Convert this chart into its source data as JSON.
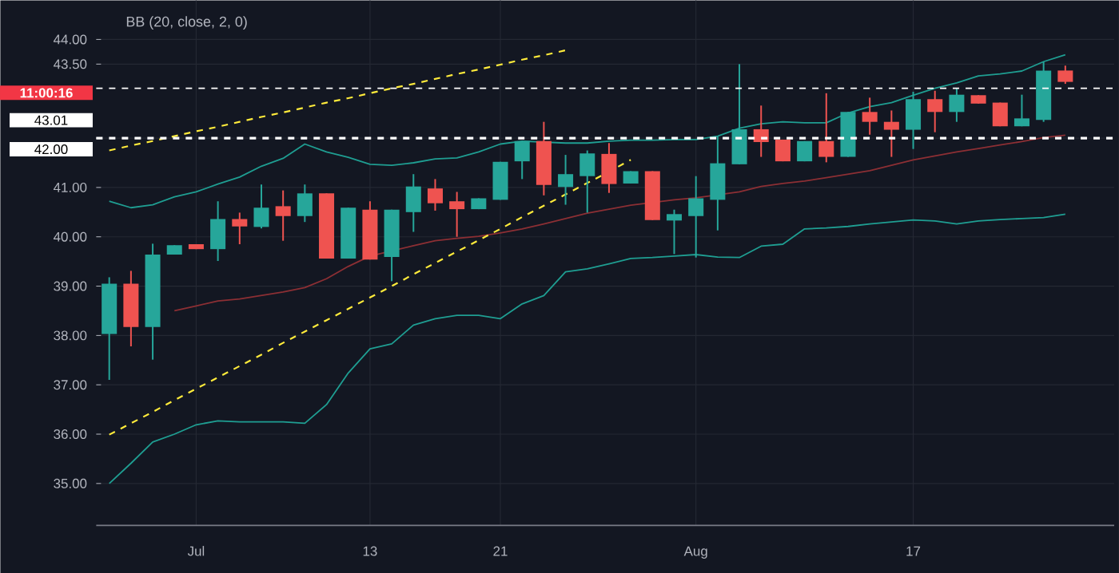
{
  "chart_data": {
    "type": "candlestick",
    "title": "BB (20, close, 2, 0)",
    "categories": [
      null,
      null,
      null,
      null,
      "Jul",
      null,
      null,
      null,
      null,
      null,
      null,
      null,
      "13",
      null,
      null,
      null,
      null,
      null,
      "21",
      null,
      null,
      null,
      null,
      null,
      null,
      null,
      null,
      "Aug",
      null,
      null,
      null,
      null,
      null,
      null,
      null,
      null,
      null,
      "17",
      null,
      null,
      null,
      null,
      null,
      null,
      null
    ],
    "ohlc": [
      [
        38.03,
        39.18,
        37.1,
        39.05
      ],
      [
        39.05,
        39.31,
        37.78,
        38.17
      ],
      [
        38.17,
        39.86,
        37.51,
        39.64
      ],
      [
        39.64,
        39.83,
        39.64,
        39.83
      ],
      [
        39.85,
        39.85,
        39.75,
        39.75
      ],
      [
        39.75,
        40.72,
        39.51,
        40.36
      ],
      [
        40.36,
        40.49,
        39.85,
        40.21
      ],
      [
        40.2,
        41.06,
        40.17,
        40.59
      ],
      [
        40.62,
        40.94,
        39.92,
        40.42
      ],
      [
        40.42,
        41.06,
        40.3,
        40.88
      ],
      [
        40.88,
        40.88,
        39.56,
        39.56
      ],
      [
        39.56,
        40.59,
        39.56,
        40.59
      ],
      [
        40.55,
        40.72,
        39.54,
        39.54
      ],
      [
        39.59,
        40.55,
        39.1,
        40.55
      ],
      [
        40.5,
        41.27,
        40.1,
        41.02
      ],
      [
        40.98,
        41.17,
        40.53,
        40.68
      ],
      [
        40.72,
        40.91,
        40.0,
        40.56
      ],
      [
        40.56,
        40.78,
        40.56,
        40.78
      ],
      [
        40.75,
        41.52,
        40.75,
        41.52
      ],
      [
        41.53,
        41.94,
        41.17,
        41.94
      ],
      [
        41.94,
        42.33,
        40.84,
        41.05
      ],
      [
        41.01,
        41.66,
        40.65,
        41.27
      ],
      [
        41.23,
        41.75,
        40.49,
        41.69
      ],
      [
        41.68,
        41.9,
        40.89,
        41.07
      ],
      [
        41.08,
        41.33,
        41.08,
        41.33
      ],
      [
        41.33,
        41.33,
        40.34,
        40.34
      ],
      [
        40.33,
        40.55,
        39.65,
        40.46
      ],
      [
        40.42,
        41.23,
        39.58,
        40.78
      ],
      [
        40.75,
        42.04,
        40.13,
        41.49
      ],
      [
        41.47,
        43.5,
        41.47,
        42.18
      ],
      [
        42.18,
        42.66,
        41.62,
        41.92
      ],
      [
        41.97,
        41.97,
        41.53,
        41.53
      ],
      [
        41.53,
        41.94,
        41.53,
        41.94
      ],
      [
        41.94,
        42.91,
        41.51,
        41.62
      ],
      [
        41.62,
        42.53,
        41.62,
        42.53
      ],
      [
        42.53,
        42.82,
        42.07,
        42.33
      ],
      [
        42.33,
        42.56,
        41.62,
        42.17
      ],
      [
        42.17,
        42.94,
        41.78,
        42.79
      ],
      [
        42.79,
        42.96,
        42.12,
        42.53
      ],
      [
        42.53,
        43.01,
        42.33,
        42.88
      ],
      [
        42.87,
        42.87,
        42.7,
        42.7
      ],
      [
        42.72,
        42.72,
        42.24,
        42.24
      ],
      [
        42.24,
        42.88,
        42.24,
        42.4
      ],
      [
        42.37,
        43.55,
        42.33,
        43.37
      ],
      [
        43.37,
        43.47,
        43.1,
        43.14
      ]
    ],
    "colors": [
      "#26a69a",
      "#ef5350",
      "#26a69a",
      "#26a69a",
      "#ef5350",
      "#26a69a",
      "#ef5350",
      "#26a69a",
      "#ef5350",
      "#26a69a",
      "#ef5350",
      "#26a69a",
      "#ef5350",
      "#26a69a",
      "#26a69a",
      "#ef5350",
      "#ef5350",
      "#26a69a",
      "#26a69a",
      "#26a69a",
      "#ef5350",
      "#26a69a",
      "#26a69a",
      "#ef5350",
      "#26a69a",
      "#ef5350",
      "#26a69a",
      "#26a69a",
      "#26a69a",
      "#26a69a",
      "#ef5350",
      "#ef5350",
      "#26a69a",
      "#ef5350",
      "#26a69a",
      "#ef5350",
      "#ef5350",
      "#26a69a",
      "#ef5350",
      "#26a69a",
      "#ef5350",
      "#ef5350",
      "#26a69a",
      "#26a69a",
      "#ef5350"
    ],
    "series": [
      {
        "type": "line",
        "color": "#1f9e92",
        "values": [
          40.72,
          40.59,
          40.65,
          40.81,
          40.91,
          41.07,
          41.21,
          41.43,
          41.59,
          41.88,
          41.72,
          41.61,
          41.47,
          41.45,
          41.5,
          41.58,
          41.6,
          41.72,
          41.88,
          41.94,
          null,
          41.9,
          41.9,
          41.94,
          41.96,
          41.96,
          41.97,
          41.97,
          42.04,
          42.2,
          42.29,
          42.33,
          42.31,
          42.31,
          42.51,
          42.64,
          42.72,
          42.87,
          43.01,
          43.12,
          43.26,
          43.3,
          43.36,
          43.55,
          43.69
        ]
      },
      {
        "type": "line",
        "color": "#8c2f34",
        "values": [
          null,
          null,
          null,
          38.5,
          38.6,
          38.7,
          38.74,
          38.81,
          38.88,
          38.97,
          39.15,
          39.4,
          39.61,
          null,
          39.82,
          39.92,
          39.97,
          40.01,
          40.08,
          40.16,
          40.26,
          40.37,
          40.48,
          40.56,
          40.64,
          null,
          40.75,
          40.79,
          null,
          40.91,
          41.02,
          41.08,
          41.13,
          41.2,
          41.27,
          41.34,
          41.45,
          41.56,
          41.64,
          41.72,
          41.79,
          41.86,
          41.93,
          42.01,
          42.06
        ]
      },
      {
        "type": "line",
        "color": "#1f9e92",
        "values": [
          35.0,
          35.41,
          35.84,
          36.0,
          36.19,
          36.27,
          36.25,
          36.25,
          36.25,
          36.22,
          36.6,
          37.24,
          37.73,
          37.83,
          38.21,
          38.34,
          38.41,
          38.41,
          38.34,
          38.64,
          38.81,
          39.29,
          39.35,
          39.45,
          39.56,
          39.58,
          39.61,
          39.64,
          39.59,
          39.58,
          39.81,
          39.85,
          40.16,
          40.18,
          40.21,
          40.26,
          40.3,
          40.34,
          40.32,
          40.26,
          40.32,
          40.35,
          40.37,
          40.39,
          40.46
        ]
      },
      {
        "type": "line",
        "color": "#ffeb3b",
        "line_style": "dashed",
        "values": [
          41.75,
          41.85,
          41.94,
          42.04,
          42.14,
          42.23,
          42.33,
          42.43,
          42.52,
          42.62,
          42.72,
          42.81,
          42.91,
          43.01,
          43.1,
          43.2,
          43.3,
          43.39,
          43.49,
          43.59,
          43.68,
          43.78,
          null,
          null,
          null,
          null,
          null,
          null,
          null,
          null,
          null,
          null,
          null,
          null,
          null,
          null,
          null,
          null,
          null,
          null,
          null,
          null,
          null,
          null,
          null
        ]
      },
      {
        "type": "line",
        "color": "#ffeb3b",
        "line_style": "dashed",
        "values": [
          35.99,
          36.22,
          36.45,
          36.69,
          36.92,
          37.15,
          37.38,
          37.61,
          37.85,
          38.08,
          38.31,
          38.54,
          38.77,
          39.0,
          39.24,
          39.47,
          39.7,
          39.93,
          40.16,
          40.4,
          40.63,
          40.86,
          41.09,
          41.32,
          41.56,
          null,
          null,
          null,
          null,
          null,
          null,
          null,
          null,
          null,
          null,
          null,
          null,
          null,
          null,
          null,
          null,
          null,
          null,
          null,
          null
        ]
      }
    ],
    "ylim": [
      34.15,
      44.79
    ],
    "yticks": [
      {
        "value": 35,
        "label": "35.00"
      },
      {
        "value": 36,
        "label": "36.00"
      },
      {
        "value": 37,
        "label": "37.00"
      },
      {
        "value": 38,
        "label": "38.00"
      },
      {
        "value": 39,
        "label": "39.00"
      },
      {
        "value": 40,
        "label": "40.00"
      },
      {
        "value": 41,
        "label": "41.00"
      },
      {
        "value": 42,
        "label": null
      },
      {
        "value": 43.5,
        "label": "43.50"
      },
      {
        "value": 44,
        "label": "44.00"
      }
    ],
    "ref_lines": [
      {
        "axis": "y",
        "value": 43.01,
        "label": "43.01",
        "color": "#ffffff",
        "line_style": "dashed"
      },
      {
        "axis": "y",
        "value": 42.0,
        "label": "42.00",
        "color": "#ffffff",
        "line_style": "dashed"
      }
    ],
    "annotations": [
      "11:00:16"
    ],
    "grid": true
  }
}
